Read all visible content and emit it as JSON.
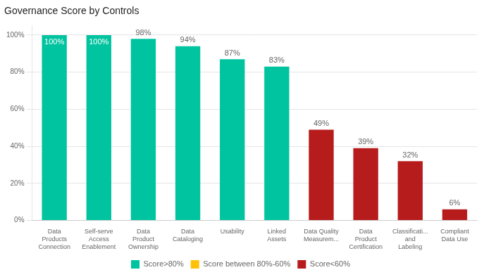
{
  "chart_data": {
    "type": "bar",
    "title": "Governance Score by Controls",
    "categories": [
      "Data\nProducts\nConnection",
      "Self-serve\nAccess\nEnablement",
      "Data\nProduct\nOwnership",
      "Data\nCataloging",
      "Usability",
      "Linked\nAssets",
      "Data Quality\nMeasurem...",
      "Data\nProduct\nCertification",
      "Classificati...\nand\nLabeling",
      "Compliant\nData Use"
    ],
    "series": [
      {
        "name": "Score>80%",
        "color": "#00C4A0",
        "values": [
          100,
          100,
          98,
          94,
          87,
          83,
          null,
          null,
          null,
          null
        ],
        "value_labels": [
          "100%",
          "100%",
          "98%",
          "94%",
          "87%",
          "83%",
          null,
          null,
          null,
          null
        ]
      },
      {
        "name": "Score between 80%-60%",
        "color": "#FFC107",
        "values": [
          null,
          null,
          null,
          null,
          null,
          null,
          null,
          null,
          null,
          null
        ],
        "value_labels": [
          null,
          null,
          null,
          null,
          null,
          null,
          null,
          null,
          null,
          null
        ]
      },
      {
        "name": "Score<60%",
        "color": "#B71C1C",
        "values": [
          null,
          null,
          null,
          null,
          null,
          null,
          49,
          39,
          32,
          6
        ],
        "value_labels": [
          null,
          null,
          null,
          null,
          null,
          null,
          "49%",
          "39%",
          "32%",
          "6%"
        ]
      }
    ],
    "ylim": [
      0,
      105
    ],
    "yticks": [
      {
        "value": 0,
        "label": "0%"
      },
      {
        "value": 20,
        "label": "20%"
      },
      {
        "value": 40,
        "label": "40%"
      },
      {
        "value": 60,
        "label": "60%"
      },
      {
        "value": 80,
        "label": "80%"
      },
      {
        "value": 100,
        "label": "100%"
      }
    ],
    "grid": true,
    "legend": "bottom",
    "data_labels": true
  }
}
